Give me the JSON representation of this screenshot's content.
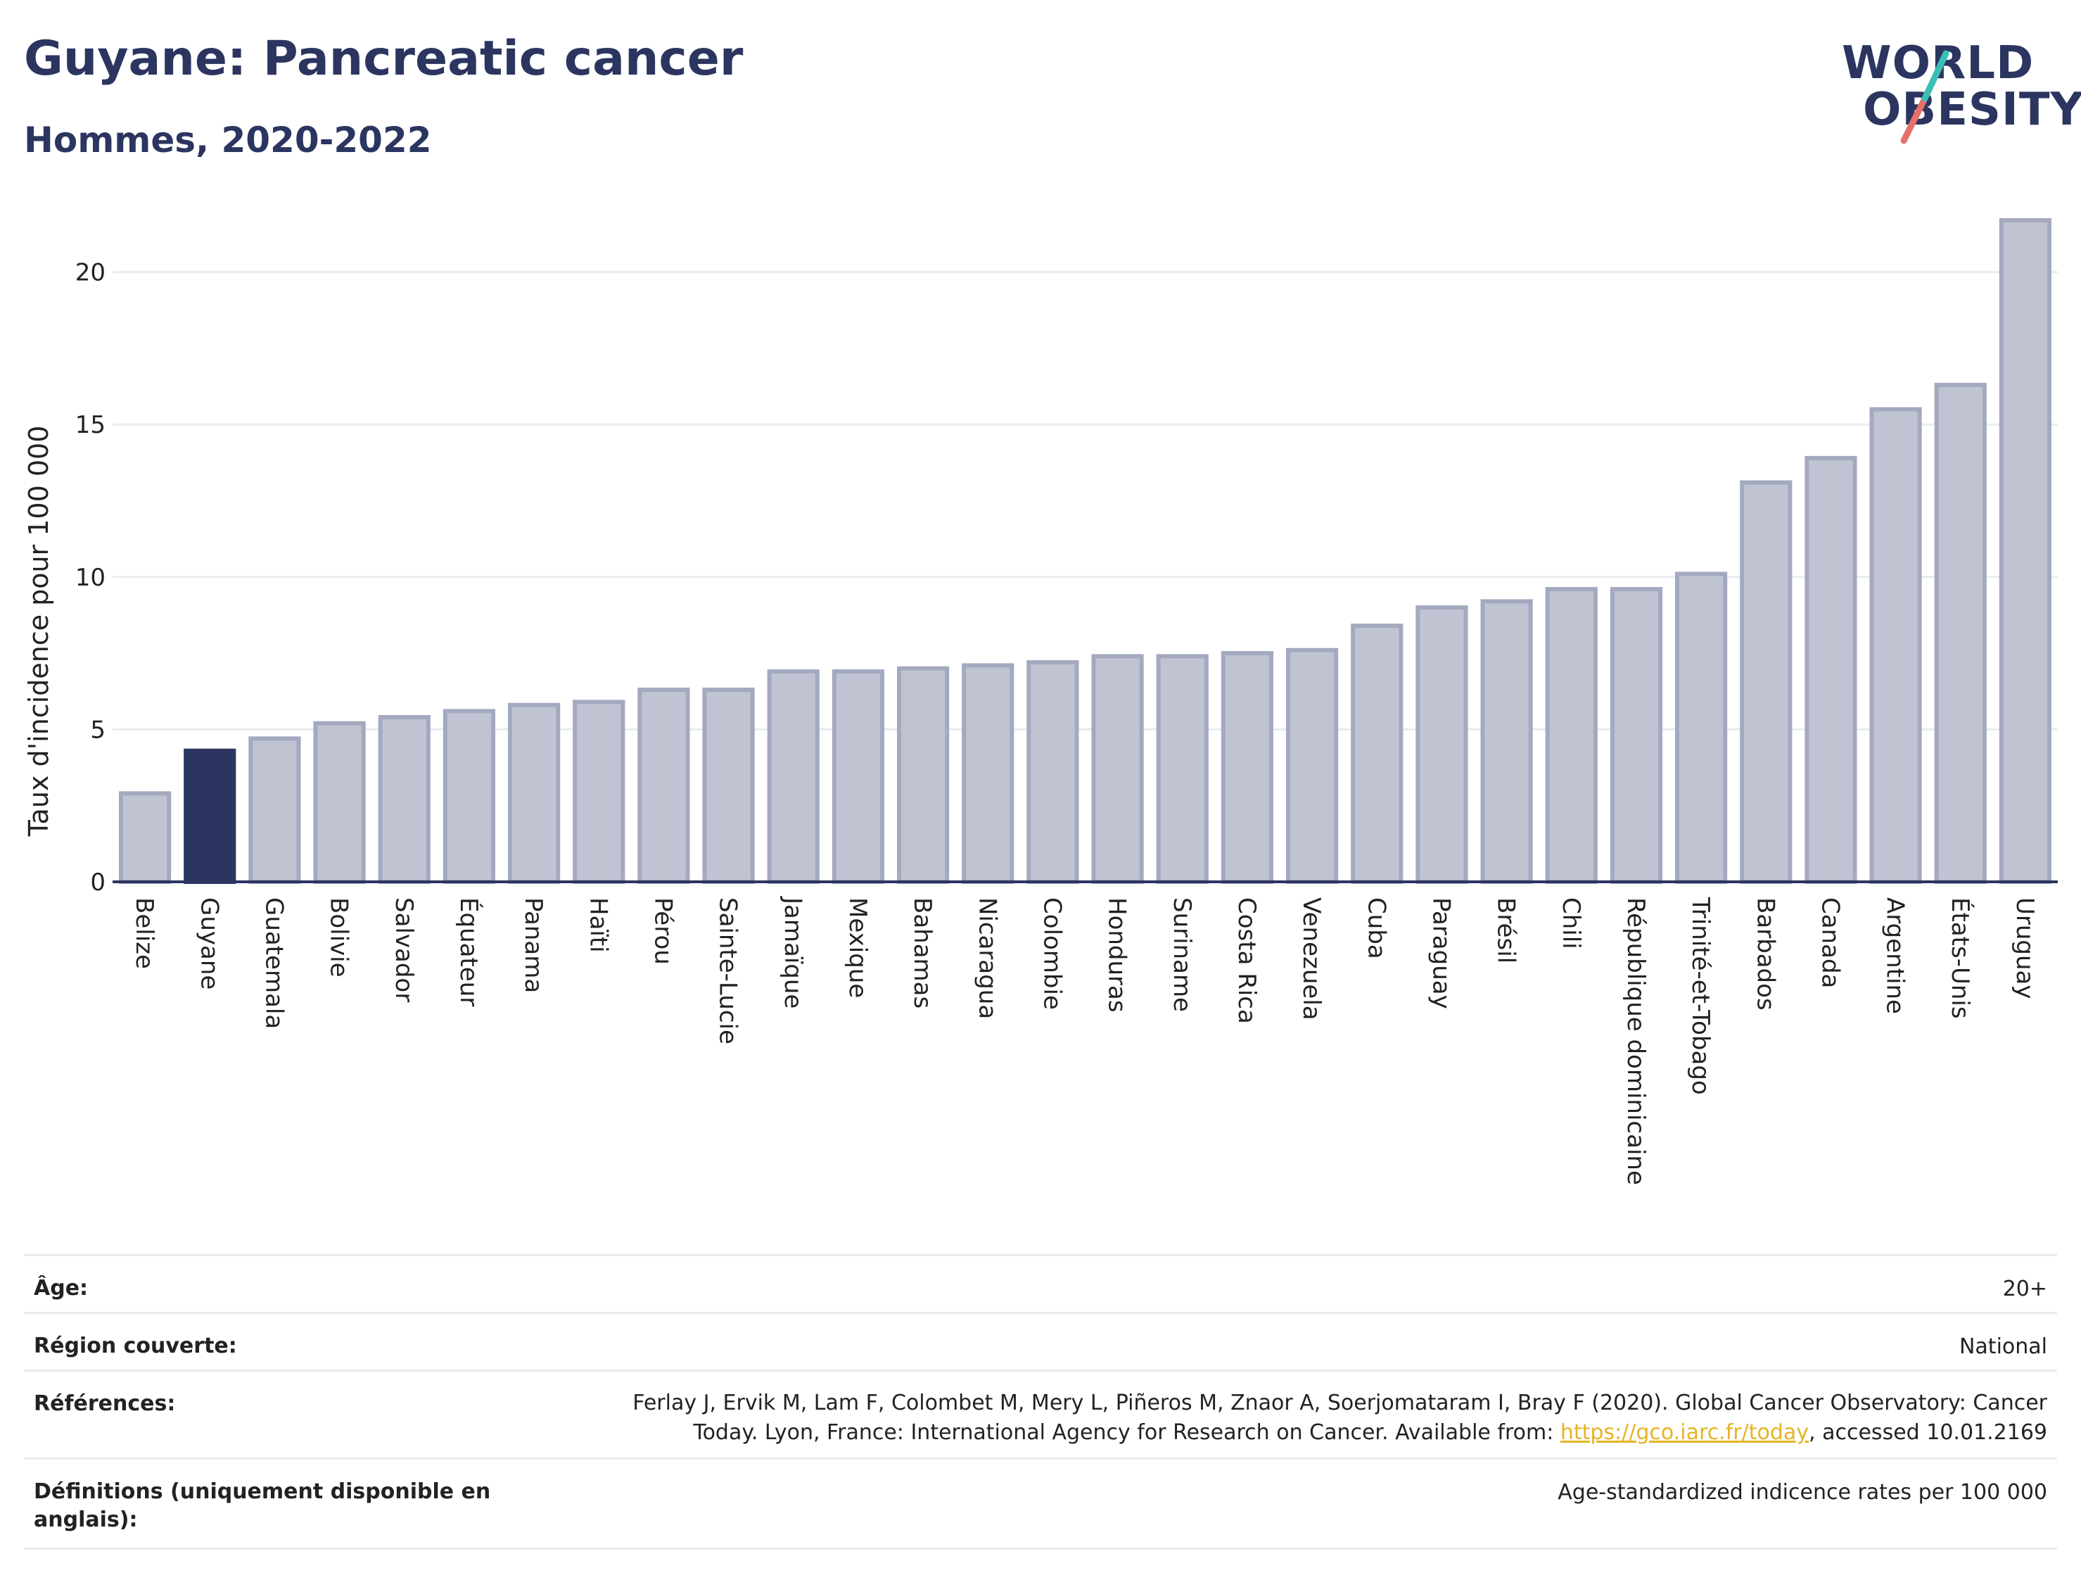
{
  "header": {
    "title": "Guyane: Pancreatic cancer",
    "subtitle": "Hommes, 2020-2022"
  },
  "logo": {
    "line1": "WORLD",
    "line2": "OBESITY",
    "colors": {
      "text": "#2b3560",
      "slash_top": "#3bbfb5",
      "slash_bottom": "#e8706a"
    }
  },
  "colors": {
    "bar": "#c0c4d2",
    "bar_border": "#a3a9bf",
    "highlight": "#2b3560",
    "axis": "#2b3560",
    "grid": "#e8ebf0"
  },
  "chart_data": {
    "type": "bar",
    "ylabel": "Taux d'incidence pour 100 000",
    "ylim": [
      0,
      22
    ],
    "yticks": [
      0,
      5,
      10,
      15,
      20
    ],
    "grid": true,
    "highlight": "Guyane",
    "categories": [
      "Belize",
      "Guyane",
      "Guatemala",
      "Bolivie",
      "Salvador",
      "Équateur",
      "Panama",
      "Haïti",
      "Pérou",
      "Sainte-Lucie",
      "Jamaïque",
      "Mexique",
      "Bahamas",
      "Nicaragua",
      "Colombie",
      "Honduras",
      "Suriname",
      "Costa Rica",
      "Venezuela",
      "Cuba",
      "Paraguay",
      "Brésil",
      "Chili",
      "République dominicaine",
      "Trinité-et-Tobago",
      "Barbados",
      "Canada",
      "Argentine",
      "États-Unis",
      "Uruguay"
    ],
    "values": [
      2.9,
      4.3,
      4.7,
      5.2,
      5.4,
      5.6,
      5.8,
      5.9,
      6.3,
      6.3,
      6.9,
      6.9,
      7.0,
      7.1,
      7.2,
      7.4,
      7.4,
      7.5,
      7.6,
      8.4,
      9.0,
      9.2,
      9.6,
      9.6,
      10.1,
      13.1,
      13.9,
      15.5,
      16.3,
      21.7
    ]
  },
  "table": {
    "rows": [
      {
        "key": "Âge:",
        "value": "20+"
      },
      {
        "key": "Région couverte:",
        "value": "National"
      },
      {
        "key": "Références:",
        "value_line1": "Ferlay J, Ervik M, Lam F, Colombet M, Mery L, Piñeros M, Znaor A, Soerjomataram I, Bray F (2020). Global Cancer Observatory: Cancer",
        "value_line2_pre": "Today. Lyon, France: International Agency for Research on Cancer. Available from: ",
        "link": "https://gco.iarc.fr/today",
        "value_line2_post": ", accessed 10.01.2169"
      },
      {
        "key_line1": "Définitions (uniquement disponible en",
        "key_line2": "anglais):",
        "value": "Age-standardized indicence rates per 100 000"
      }
    ]
  }
}
